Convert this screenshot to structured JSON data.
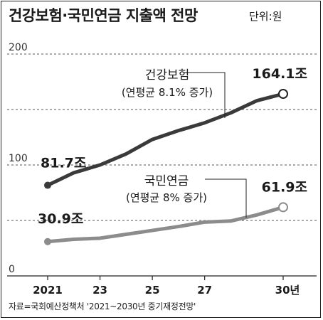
{
  "title": "건강보험·국민연금 지출액 전망",
  "unit_label": "단위:원",
  "source": "자료=국회예산정책처 '2021~2030년 중기재정전망'",
  "chart_data": {
    "type": "line",
    "title": "건강보험·국민연금 지출액 전망",
    "xlabel": "",
    "ylabel": "",
    "ylim": [
      0,
      200
    ],
    "y_ticks": [
      "0",
      "100",
      "200"
    ],
    "y_tick_values": [
      0,
      100,
      200
    ],
    "x": [
      2021,
      2022,
      2023,
      2024,
      2025,
      2026,
      2027,
      2028,
      2029,
      2030
    ],
    "x_tick_labels": [
      "2021",
      "23",
      "25",
      "27",
      "30년"
    ],
    "x_tick_positions": [
      2021,
      2023,
      2025,
      2027,
      2030
    ],
    "grid": "horizontal dashed",
    "series": [
      {
        "name": "건강보험",
        "note": "(연평균 8.1% 증가)",
        "color": "#3a3a3a",
        "values": [
          81.7,
          93,
          100,
          110,
          123,
          131,
          138,
          147,
          158,
          164.1
        ],
        "start_label": "81.7조",
        "end_label": "164.1조"
      },
      {
        "name": "국민연금",
        "note": "(연평균 8% 증가)",
        "color": "#8c8c8c",
        "values": [
          30.9,
          33,
          34,
          37.5,
          41,
          44.5,
          48.5,
          49.5,
          55,
          61.9
        ],
        "start_label": "30.9조",
        "end_label": "61.9조"
      }
    ]
  }
}
